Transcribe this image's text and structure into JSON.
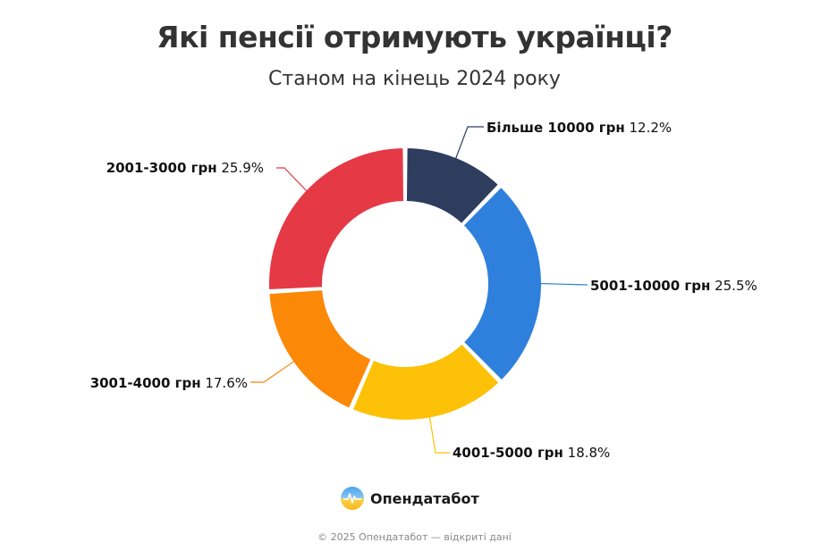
{
  "header": {
    "title": "Які пенсії отримують українці?",
    "subtitle": "Станом на кінець 2024 року"
  },
  "chart_data": {
    "type": "pie",
    "variant": "donut",
    "title": "Які пенсії отримують українці?",
    "subtitle": "Станом на кінець 2024 року",
    "unit": "%",
    "slices": [
      {
        "label": "Більше 10000 грн",
        "value": 12.2,
        "value_label": "12.2%",
        "color": "#2e3d5e"
      },
      {
        "label": "5001-10000 грн",
        "value": 25.5,
        "value_label": "25.5%",
        "color": "#2f80dc"
      },
      {
        "label": "4001-5000 грн",
        "value": 18.8,
        "value_label": "18.8%",
        "color": "#fdc107"
      },
      {
        "label": "3001-4000 грн",
        "value": 17.6,
        "value_label": "17.6%",
        "color": "#fb8807"
      },
      {
        "label": "2001-3000 грн",
        "value": 25.9,
        "value_label": "25.9%",
        "color": "#e53946"
      }
    ]
  },
  "brand": {
    "name": "Опендатабот",
    "logo_icon": "opendatabot-logo-icon"
  },
  "footer": {
    "text": "© 2025 Опендатабот — відкриті дані"
  }
}
